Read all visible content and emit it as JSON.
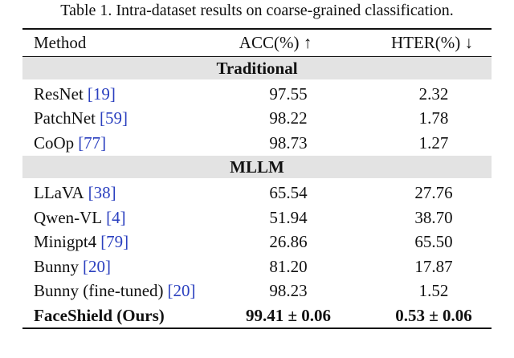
{
  "caption": "Table 1. Intra-dataset results on coarse-grained classification.",
  "table": {
    "header": [
      "Method",
      "ACC(%) ↑",
      "HTER(%) ↓"
    ],
    "groups": [
      {
        "name": "Traditional",
        "rows": [
          {
            "method": "ResNet",
            "cite": "[19]",
            "acc": "97.55",
            "hter": "2.32"
          },
          {
            "method": "PatchNet",
            "cite": "[59]",
            "acc": "98.22",
            "hter": "1.78"
          },
          {
            "method": "CoOp",
            "cite": "[77]",
            "acc": "98.73",
            "hter": "1.27"
          }
        ]
      },
      {
        "name": "MLLM",
        "rows": [
          {
            "method": "LLaVA",
            "cite": "[38]",
            "acc": "65.54",
            "hter": "27.76"
          },
          {
            "method": "Qwen-VL",
            "cite": "[4]",
            "acc": "51.94",
            "hter": "38.70"
          },
          {
            "method": "Minigpt4",
            "cite": "[79]",
            "acc": "26.86",
            "hter": "65.50"
          },
          {
            "method": "Bunny",
            "cite": "[20]",
            "acc": "81.20",
            "hter": "17.87"
          },
          {
            "method": "Bunny (fine-tuned)",
            "cite": "[20]",
            "acc": "98.23",
            "hter": "1.52"
          },
          {
            "method": "FaceShield (Ours)",
            "acc": "99.41 ± 0.06",
            "hter": "0.53 ± 0.06",
            "bold": true
          }
        ]
      }
    ]
  }
}
